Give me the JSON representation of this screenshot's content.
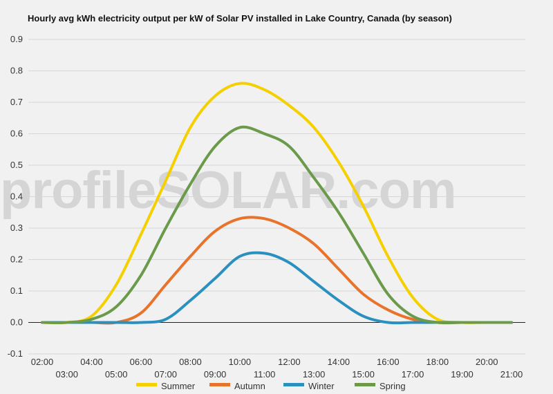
{
  "chart_data": {
    "type": "line",
    "title": "Hourly avg kWh electricity output per kW of Solar PV installed in Lake Country, Canada (by season)",
    "watermark": "profileSOLAR.com",
    "xlabel": "",
    "ylabel": "",
    "ylim": [
      -0.1,
      0.9
    ],
    "yticks": [
      "0.9",
      "0.8",
      "0.7",
      "0.6",
      "0.5",
      "0.4",
      "0.3",
      "0.2",
      "0.1",
      "0.0",
      "-0.1"
    ],
    "xticks": [
      "02:00",
      "03:00",
      "04:00",
      "05:00",
      "06:00",
      "07:00",
      "08:00",
      "09:00",
      "10:00",
      "11:00",
      "12:00",
      "13:00",
      "14:00",
      "15:00",
      "16:00",
      "17:00",
      "18:00",
      "19:00",
      "20:00",
      "21:00"
    ],
    "grid": true,
    "legend_position": "bottom",
    "categories": [
      "02:00",
      "03:00",
      "04:00",
      "05:00",
      "06:00",
      "07:00",
      "08:00",
      "09:00",
      "10:00",
      "11:00",
      "12:00",
      "13:00",
      "14:00",
      "15:00",
      "16:00",
      "17:00",
      "18:00",
      "19:00",
      "20:00",
      "21:00"
    ],
    "series": [
      {
        "name": "Summer",
        "color": "#f5d000",
        "values": [
          0,
          0,
          0.02,
          0.12,
          0.28,
          0.45,
          0.62,
          0.72,
          0.76,
          0.74,
          0.69,
          0.62,
          0.51,
          0.37,
          0.21,
          0.08,
          0.01,
          0,
          0,
          0
        ]
      },
      {
        "name": "Autumn",
        "color": "#e8732a",
        "values": [
          0,
          0,
          0,
          0,
          0.03,
          0.12,
          0.21,
          0.29,
          0.33,
          0.33,
          0.3,
          0.25,
          0.17,
          0.09,
          0.04,
          0.01,
          0,
          0,
          0,
          0
        ]
      },
      {
        "name": "Winter",
        "color": "#2a90c0",
        "values": [
          0,
          0,
          0,
          0,
          0,
          0.01,
          0.07,
          0.14,
          0.21,
          0.22,
          0.19,
          0.13,
          0.07,
          0.02,
          0,
          0,
          0,
          0,
          0,
          0
        ]
      },
      {
        "name": "Spring",
        "color": "#6a9a4a",
        "values": [
          0,
          0,
          0.01,
          0.05,
          0.15,
          0.3,
          0.44,
          0.56,
          0.62,
          0.6,
          0.56,
          0.46,
          0.35,
          0.22,
          0.09,
          0.02,
          0,
          0,
          0,
          0
        ]
      }
    ]
  }
}
